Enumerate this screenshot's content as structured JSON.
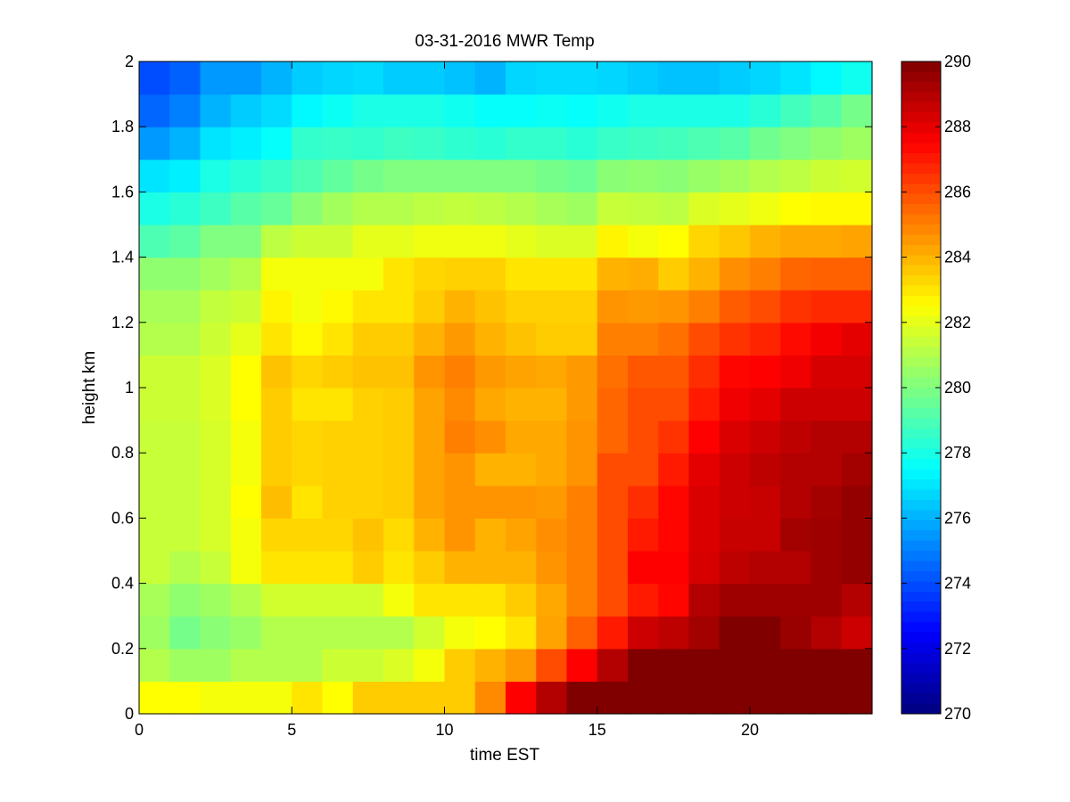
{
  "chart_data": {
    "type": "heatmap",
    "title": "03-31-2016 MWR Temp",
    "xlabel": "time EST",
    "ylabel": "height km",
    "xlim": [
      0,
      24
    ],
    "ylim": [
      0,
      2
    ],
    "xticks": [
      0,
      5,
      10,
      15,
      20
    ],
    "yticks": [
      0,
      0.2,
      0.4,
      0.6,
      0.8,
      1,
      1.2,
      1.4,
      1.6,
      1.8,
      2
    ],
    "x_centers": [
      0.5,
      1.5,
      2.5,
      3.5,
      4.5,
      5.5,
      6.5,
      7.5,
      8.5,
      9.5,
      10.5,
      11.5,
      12.5,
      13.5,
      14.5,
      15.5,
      16.5,
      17.5,
      18.5,
      19.5,
      20.5,
      21.5,
      22.5,
      23.5
    ],
    "y_centers": [
      0.05,
      0.15,
      0.25,
      0.35,
      0.45,
      0.55,
      0.65,
      0.75,
      0.85,
      0.95,
      1.05,
      1.15,
      1.25,
      1.35,
      1.45,
      1.55,
      1.65,
      1.75,
      1.85,
      1.95
    ],
    "z": [
      [
        282.5,
        282.5,
        282.3,
        282.3,
        282.3,
        283,
        282.5,
        283.5,
        283.5,
        283.5,
        283.5,
        284.8,
        287.5,
        289,
        290,
        290,
        290,
        290,
        290,
        290,
        290,
        290,
        290,
        290
      ],
      [
        281,
        280.6,
        280.6,
        281,
        281,
        281,
        281.5,
        281.5,
        281.8,
        282.3,
        283.5,
        284,
        284.5,
        286,
        287.5,
        289,
        290,
        290,
        290,
        290,
        290,
        290,
        290,
        290
      ],
      [
        280.6,
        279.8,
        280.2,
        280.5,
        281,
        281,
        281,
        281,
        281,
        281.6,
        282.3,
        282.5,
        283,
        284.3,
        285.6,
        287,
        288.5,
        288.8,
        289.3,
        290,
        290,
        289.5,
        289,
        288.5
      ],
      [
        280.8,
        280.3,
        280.6,
        281,
        281.6,
        281.6,
        281.6,
        281.6,
        282.3,
        283,
        283,
        283,
        283.5,
        284.2,
        285,
        286,
        287,
        287.4,
        289,
        289.4,
        289.4,
        289.4,
        289.4,
        289
      ],
      [
        281.4,
        281,
        281.4,
        282.3,
        283,
        283,
        283,
        283.5,
        283,
        283.5,
        284,
        284,
        284,
        284.6,
        285,
        286,
        287.5,
        287.5,
        288.3,
        288.8,
        289,
        289,
        289.4,
        289.6
      ],
      [
        281.4,
        281.4,
        281.7,
        282.3,
        283.3,
        283.3,
        283.3,
        283.7,
        283.2,
        284,
        284.6,
        284,
        284.3,
        284.7,
        285,
        286,
        287,
        287.4,
        288.2,
        288.6,
        288.6,
        289.3,
        289.4,
        289.6
      ],
      [
        281.4,
        281.4,
        281.7,
        282.5,
        283.8,
        283,
        283.4,
        283.4,
        283.5,
        284.3,
        284.6,
        284.6,
        284.6,
        284.5,
        285,
        286,
        286.6,
        287.4,
        288.2,
        288.5,
        288.6,
        289,
        289.3,
        289.6
      ],
      [
        281.4,
        281.4,
        281.7,
        282.3,
        283.5,
        283.3,
        283.4,
        283.4,
        283.5,
        284.3,
        284.6,
        284,
        284,
        284.2,
        284.6,
        286,
        286,
        287,
        288,
        288.5,
        288.8,
        289,
        289,
        289.3
      ],
      [
        281.4,
        281.4,
        281.7,
        282.3,
        283.5,
        283.3,
        283.4,
        283.4,
        283.5,
        284.3,
        285,
        284.7,
        284.2,
        284.2,
        284.6,
        285.5,
        286,
        286.5,
        287.5,
        288.2,
        288.5,
        288.8,
        289,
        289
      ],
      [
        281.5,
        281.5,
        281.8,
        282.5,
        283.5,
        283,
        283,
        283.4,
        283.5,
        284.3,
        284.8,
        284.2,
        284,
        284,
        284.5,
        285.5,
        286,
        286,
        287,
        287.8,
        288,
        288.5,
        288.5,
        288.5
      ],
      [
        281.5,
        281.5,
        281.8,
        282.5,
        283.7,
        283.3,
        283.5,
        283.7,
        283.7,
        284.6,
        285,
        284.5,
        284.3,
        284.2,
        284.5,
        285.3,
        285.8,
        285.8,
        286.6,
        287.4,
        287.5,
        287.8,
        288.3,
        288.3
      ],
      [
        281,
        281,
        281.5,
        282,
        283,
        282.6,
        283,
        283.5,
        283.5,
        284,
        284.5,
        284,
        283.7,
        283.5,
        283.5,
        285,
        285,
        285.3,
        286,
        286.5,
        286.8,
        287.3,
        287.7,
        288
      ],
      [
        280.8,
        280.8,
        281.3,
        281.5,
        282.7,
        282.3,
        282.6,
        283,
        283,
        283.5,
        284,
        283.7,
        283.4,
        283.4,
        283.4,
        284.6,
        284.5,
        284.6,
        285,
        285.7,
        286,
        286.5,
        286.7,
        286.7
      ],
      [
        280.3,
        280.3,
        280.7,
        281,
        282.3,
        282.3,
        282.3,
        282.3,
        283,
        283.3,
        283.4,
        283.4,
        283,
        283,
        283,
        284,
        284.1,
        283.5,
        284,
        284.7,
        285,
        285.5,
        285.6,
        285.6
      ],
      [
        279,
        279.3,
        280,
        280,
        281.2,
        281.5,
        281.5,
        282,
        282,
        282.2,
        282.2,
        282.2,
        282,
        281.8,
        281.8,
        282.7,
        282.3,
        282.5,
        283.3,
        283.6,
        284,
        284.2,
        284.2,
        284.3
      ],
      [
        278,
        278.3,
        278.7,
        279.2,
        279.5,
        280.2,
        280.7,
        281,
        281,
        281.2,
        281.3,
        281.2,
        281,
        280.8,
        280.6,
        281.4,
        281.3,
        281.2,
        281.8,
        282,
        282.2,
        282.5,
        282.6,
        282.6
      ],
      [
        277,
        277.2,
        278,
        278.3,
        278.6,
        279,
        279.4,
        279.8,
        280,
        280,
        280,
        280,
        280,
        279.8,
        279.6,
        280.2,
        280.3,
        280.2,
        280.5,
        280.7,
        281,
        281.2,
        281.5,
        281.6
      ],
      [
        275.5,
        276,
        277,
        277.2,
        277.6,
        278.5,
        278.6,
        278.5,
        278.7,
        278.6,
        278.4,
        278.3,
        278.5,
        278.5,
        278.3,
        278.6,
        278.7,
        278.8,
        279,
        279.2,
        279.7,
        280,
        280.3,
        280.6
      ],
      [
        274.5,
        275,
        276,
        276.5,
        276.8,
        277.4,
        277.7,
        278,
        278,
        278,
        277.8,
        277.6,
        277.6,
        277.7,
        277.6,
        277.8,
        278,
        278,
        278,
        278,
        278.3,
        278.8,
        279.2,
        279.8
      ],
      [
        274,
        274.4,
        275.5,
        275.5,
        276,
        276.5,
        276.7,
        276.8,
        276.5,
        276.5,
        276.3,
        276,
        276.7,
        276.8,
        276.8,
        276.7,
        276.5,
        276.3,
        276.3,
        276.5,
        276.7,
        277,
        277.4,
        277.8
      ]
    ],
    "colorbar": {
      "min": 270,
      "max": 290,
      "ticks": [
        270,
        272,
        274,
        276,
        278,
        280,
        282,
        284,
        286,
        288,
        290
      ],
      "colormap": "jet"
    },
    "grid": false,
    "legend": "none"
  }
}
